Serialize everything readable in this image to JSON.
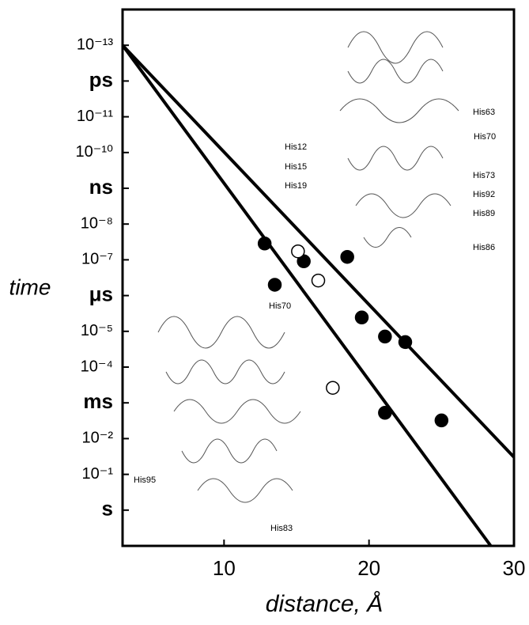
{
  "chart_data": {
    "type": "scatter",
    "y_log": true,
    "xlabel": "distance, Å",
    "ylabel": "time",
    "xlim": [
      3,
      30
    ],
    "xticks": [
      10,
      20,
      30
    ],
    "ylim": [
      10,
      1e-14
    ],
    "yticks": [
      {
        "value": 1e-13,
        "label": "10⁻¹³"
      },
      {
        "value": 1e-12,
        "label": "ps"
      },
      {
        "value": 1e-11,
        "label": "10⁻¹¹"
      },
      {
        "value": 1e-10,
        "label": "10⁻¹⁰"
      },
      {
        "value": 1e-09,
        "label": "ns"
      },
      {
        "value": 1e-08,
        "label": "10⁻⁸"
      },
      {
        "value": 1e-07,
        "label": "10⁻⁷"
      },
      {
        "value": 1e-06,
        "label": "μs"
      },
      {
        "value": 1e-05,
        "label": "10⁻⁵"
      },
      {
        "value": 0.0001,
        "label": "10⁻⁴"
      },
      {
        "value": 0.001,
        "label": "ms"
      },
      {
        "value": 0.01,
        "label": "10⁻²"
      },
      {
        "value": 0.1,
        "label": "10⁻¹"
      },
      {
        "value": 1,
        "label": "s"
      }
    ],
    "series": [
      {
        "color": "#000000",
        "filled": true,
        "x": [
          12.8,
          13.5,
          15.5,
          18.5,
          19.5,
          21.1,
          22.5,
          21.1,
          25.0
        ],
        "values": [
          3.5e-08,
          5e-07,
          1.1e-07,
          8.3e-08,
          4.1e-06,
          1.4e-05,
          2e-05,
          0.0019,
          0.0031
        ]
      },
      {
        "color": "#000000",
        "filled": false,
        "x": [
          15.1,
          16.5,
          17.5
        ],
        "values": [
          5.8e-08,
          3.8e-07,
          0.00038
        ]
      }
    ],
    "lines": [
      {
        "color": "#000000",
        "x": [
          3,
          28.4
        ],
        "values": [
          1e-13,
          10
        ]
      },
      {
        "color": "#000000",
        "x": [
          3,
          30
        ],
        "values": [
          1e-13,
          0.033
        ]
      }
    ],
    "annotations": [
      "His63",
      "His70",
      "His12",
      "His15",
      "His73",
      "His92",
      "His19",
      "His89",
      "His86",
      "His70",
      "His95",
      "His83"
    ]
  }
}
